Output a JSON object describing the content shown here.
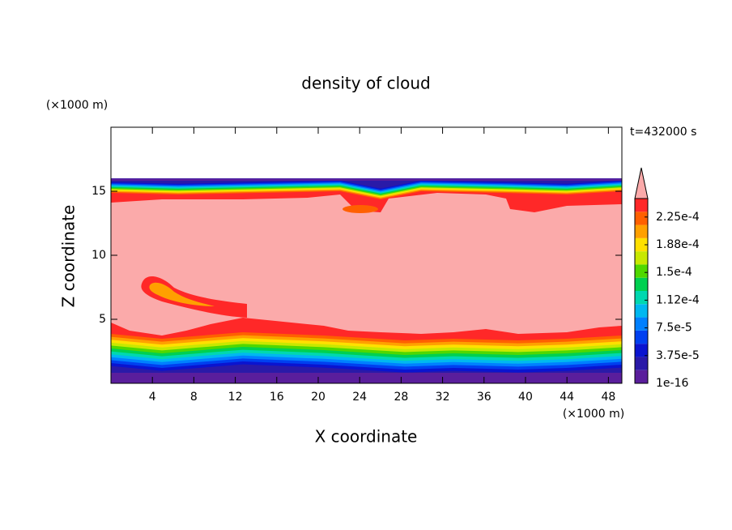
{
  "chart_data": {
    "type": "contour",
    "title": "density of cloud",
    "x_label": "X coordinate",
    "y_label": "Z coordinate",
    "x_unit": "(×1000 m)",
    "y_unit": "(×1000 m)",
    "annotation": "t=432000 s",
    "xlim": [
      0,
      49.3
    ],
    "xticks": [
      4,
      8,
      12,
      16,
      20,
      24,
      28,
      32,
      36,
      40,
      44,
      48
    ],
    "ylim": [
      0,
      20
    ],
    "yticks": [
      5,
      10,
      15
    ],
    "colorbar": {
      "clim": [
        1e-16,
        0.00025
      ],
      "ticks": [
        1e-16,
        {
          "value": 3.75e-05,
          "label": "3.75e-5"
        },
        {
          "value": 7.5e-05,
          "label": "7.5e-5"
        },
        {
          "value": 0.0001125,
          "label": "1.12e-4"
        },
        {
          "value": 0.00015,
          "label": "1.5e-4"
        },
        {
          "value": 0.0001875,
          "label": "1.88e-4"
        },
        {
          "value": 0.000225,
          "label": "2.25e-4"
        }
      ],
      "colors": [
        "#5a1e9c",
        "#2a1aa8",
        "#0a14d0",
        "#0040f0",
        "#0080ff",
        "#00b8f0",
        "#00d8b0",
        "#00d050",
        "#50d800",
        "#c8e800",
        "#ffe000",
        "#ffa000",
        "#ff6000",
        "#ff2828"
      ],
      "extend_color": "#fbaaaa"
    }
  }
}
